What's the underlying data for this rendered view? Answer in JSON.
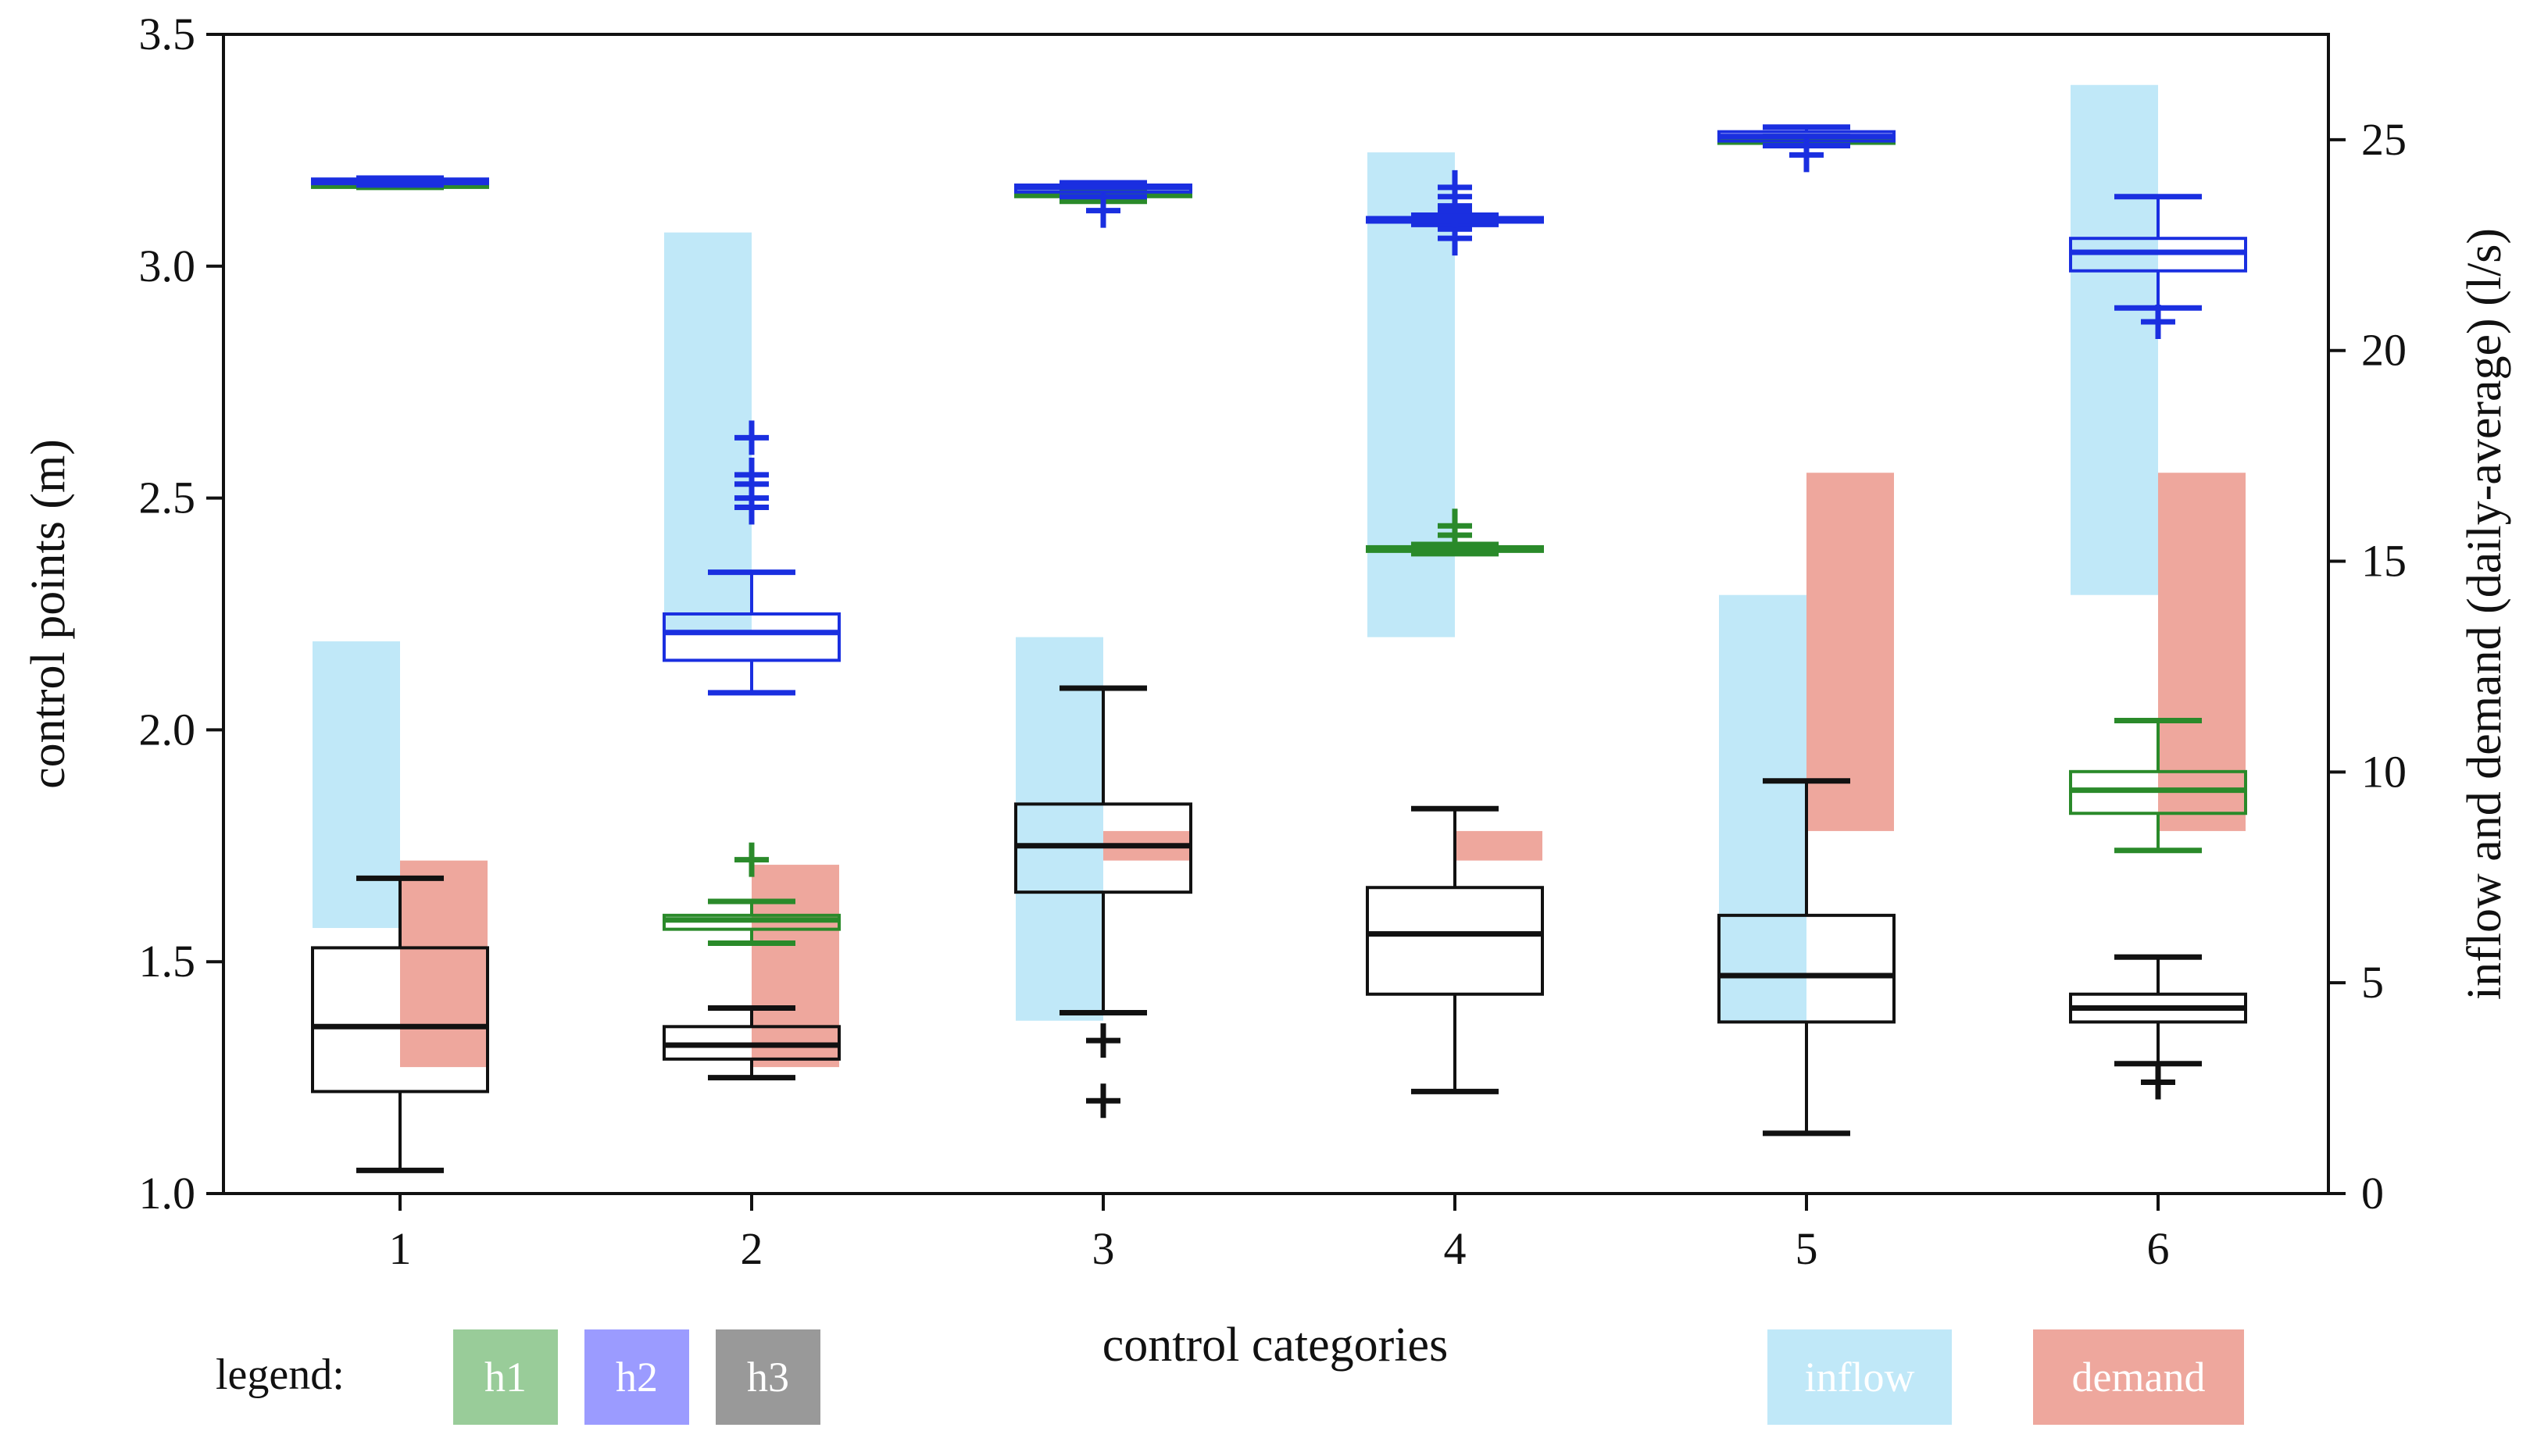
{
  "chart_data": {
    "type": "boxplot",
    "title": "",
    "xlabel": "control categories",
    "ylabel_left": "control points (m)",
    "ylabel_right": "inflow and demand (daily-average) (l/s)",
    "categories": [
      "1",
      "2",
      "3",
      "4",
      "5",
      "6"
    ],
    "ylim_left": [
      1.0,
      3.5
    ],
    "ylim_right": [
      0,
      27.5
    ],
    "yticks_left": [
      "1.0",
      "1.5",
      "2.0",
      "2.5",
      "3.0",
      "3.5"
    ],
    "yticks_right": [
      "0",
      "5",
      "10",
      "15",
      "20",
      "25"
    ],
    "legend_label": "legend:",
    "legend_items": [
      {
        "key": "h1",
        "label": "h1",
        "color": "#2a8a2a",
        "swatch": "#99cc99"
      },
      {
        "key": "h2",
        "label": "h2",
        "color": "#1a2fe0",
        "swatch": "#9b9bff"
      },
      {
        "key": "h3",
        "label": "h3",
        "color": "#111111",
        "swatch": "#999999"
      }
    ],
    "range_legend": [
      {
        "key": "inflow",
        "label": "inflow",
        "color": "#c0e8f8"
      },
      {
        "key": "demand",
        "label": "demand",
        "color": "#eea79d"
      }
    ],
    "inflow_ranges": [
      {
        "category": "1",
        "min": 6.3,
        "max": 13.1
      },
      {
        "category": "2",
        "min": 13.3,
        "max": 22.8
      },
      {
        "category": "3",
        "min": 4.1,
        "max": 13.2
      },
      {
        "category": "4",
        "min": 13.2,
        "max": 24.7
      },
      {
        "category": "5",
        "min": 4.1,
        "max": 14.2
      },
      {
        "category": "6",
        "min": 14.2,
        "max": 26.3
      }
    ],
    "demand_ranges": [
      {
        "category": "1",
        "min": 3.0,
        "max": 7.9
      },
      {
        "category": "2",
        "min": 3.0,
        "max": 7.8
      },
      {
        "category": "3",
        "min": 7.9,
        "max": 8.6
      },
      {
        "category": "4",
        "min": 7.9,
        "max": 8.6
      },
      {
        "category": "5",
        "min": 8.6,
        "max": 17.1
      },
      {
        "category": "6",
        "min": 8.6,
        "max": 17.1
      }
    ],
    "boxes": [
      {
        "category": "1",
        "series": "h3",
        "whislo": 1.05,
        "q1": 1.22,
        "med": 1.36,
        "q3": 1.53,
        "whishi": 1.68,
        "fliers": []
      },
      {
        "category": "1",
        "series": "h1",
        "whislo": 3.17,
        "q1": 3.17,
        "med": 3.177,
        "q3": 3.183,
        "whishi": 3.19,
        "fliers": []
      },
      {
        "category": "1",
        "series": "h2",
        "whislo": 3.175,
        "q1": 3.178,
        "med": 3.182,
        "q3": 3.188,
        "whishi": 3.19,
        "fliers": []
      },
      {
        "category": "2",
        "series": "h3",
        "whislo": 1.25,
        "q1": 1.29,
        "med": 1.32,
        "q3": 1.36,
        "whishi": 1.4,
        "fliers": []
      },
      {
        "category": "2",
        "series": "h1",
        "whislo": 1.54,
        "q1": 1.57,
        "med": 1.59,
        "q3": 1.6,
        "whishi": 1.63,
        "fliers": [
          1.72
        ]
      },
      {
        "category": "2",
        "series": "h2",
        "whislo": 2.08,
        "q1": 2.15,
        "med": 2.21,
        "q3": 2.25,
        "whishi": 2.34,
        "fliers": [
          2.48,
          2.5,
          2.53,
          2.55,
          2.63
        ]
      },
      {
        "category": "3",
        "series": "h3",
        "whislo": 1.39,
        "q1": 1.65,
        "med": 1.75,
        "q3": 1.84,
        "whishi": 2.09,
        "fliers": [
          1.33,
          1.2
        ]
      },
      {
        "category": "3",
        "series": "h1",
        "whislo": 3.14,
        "q1": 3.15,
        "med": 3.155,
        "q3": 3.16,
        "whishi": 3.165,
        "fliers": []
      },
      {
        "category": "3",
        "series": "h2",
        "whislo": 3.15,
        "q1": 3.16,
        "med": 3.17,
        "q3": 3.175,
        "whishi": 3.18,
        "fliers": [
          3.12
        ]
      },
      {
        "category": "4",
        "series": "h3",
        "whislo": 1.22,
        "q1": 1.43,
        "med": 1.56,
        "q3": 1.66,
        "whishi": 1.83,
        "fliers": []
      },
      {
        "category": "4",
        "series": "h1",
        "whislo": 2.38,
        "q1": 2.385,
        "med": 2.39,
        "q3": 2.395,
        "whishi": 2.4,
        "fliers": [
          2.42,
          2.44
        ]
      },
      {
        "category": "4",
        "series": "h2",
        "whislo": 3.09,
        "q1": 3.095,
        "med": 3.1,
        "q3": 3.105,
        "whishi": 3.11,
        "fliers": [
          3.06,
          3.08,
          3.12,
          3.13,
          3.15,
          3.17
        ]
      },
      {
        "category": "5",
        "series": "h3",
        "whislo": 1.13,
        "q1": 1.37,
        "med": 1.47,
        "q3": 1.6,
        "whishi": 1.89,
        "fliers": []
      },
      {
        "category": "5",
        "series": "h1",
        "whislo": 3.26,
        "q1": 3.265,
        "med": 3.27,
        "q3": 3.275,
        "whishi": 3.28,
        "fliers": []
      },
      {
        "category": "5",
        "series": "h2",
        "whislo": 3.26,
        "q1": 3.27,
        "med": 3.28,
        "q3": 3.29,
        "whishi": 3.3,
        "fliers": [
          3.24
        ]
      },
      {
        "category": "6",
        "series": "h3",
        "whislo": 1.28,
        "q1": 1.37,
        "med": 1.4,
        "q3": 1.43,
        "whishi": 1.51,
        "fliers": [
          1.24
        ]
      },
      {
        "category": "6",
        "series": "h1",
        "whislo": 1.74,
        "q1": 1.82,
        "med": 1.87,
        "q3": 1.91,
        "whishi": 2.02,
        "fliers": []
      },
      {
        "category": "6",
        "series": "h2",
        "whislo": 2.91,
        "q1": 2.99,
        "med": 3.03,
        "q3": 3.06,
        "whishi": 3.15,
        "fliers": [
          2.88
        ]
      }
    ]
  }
}
